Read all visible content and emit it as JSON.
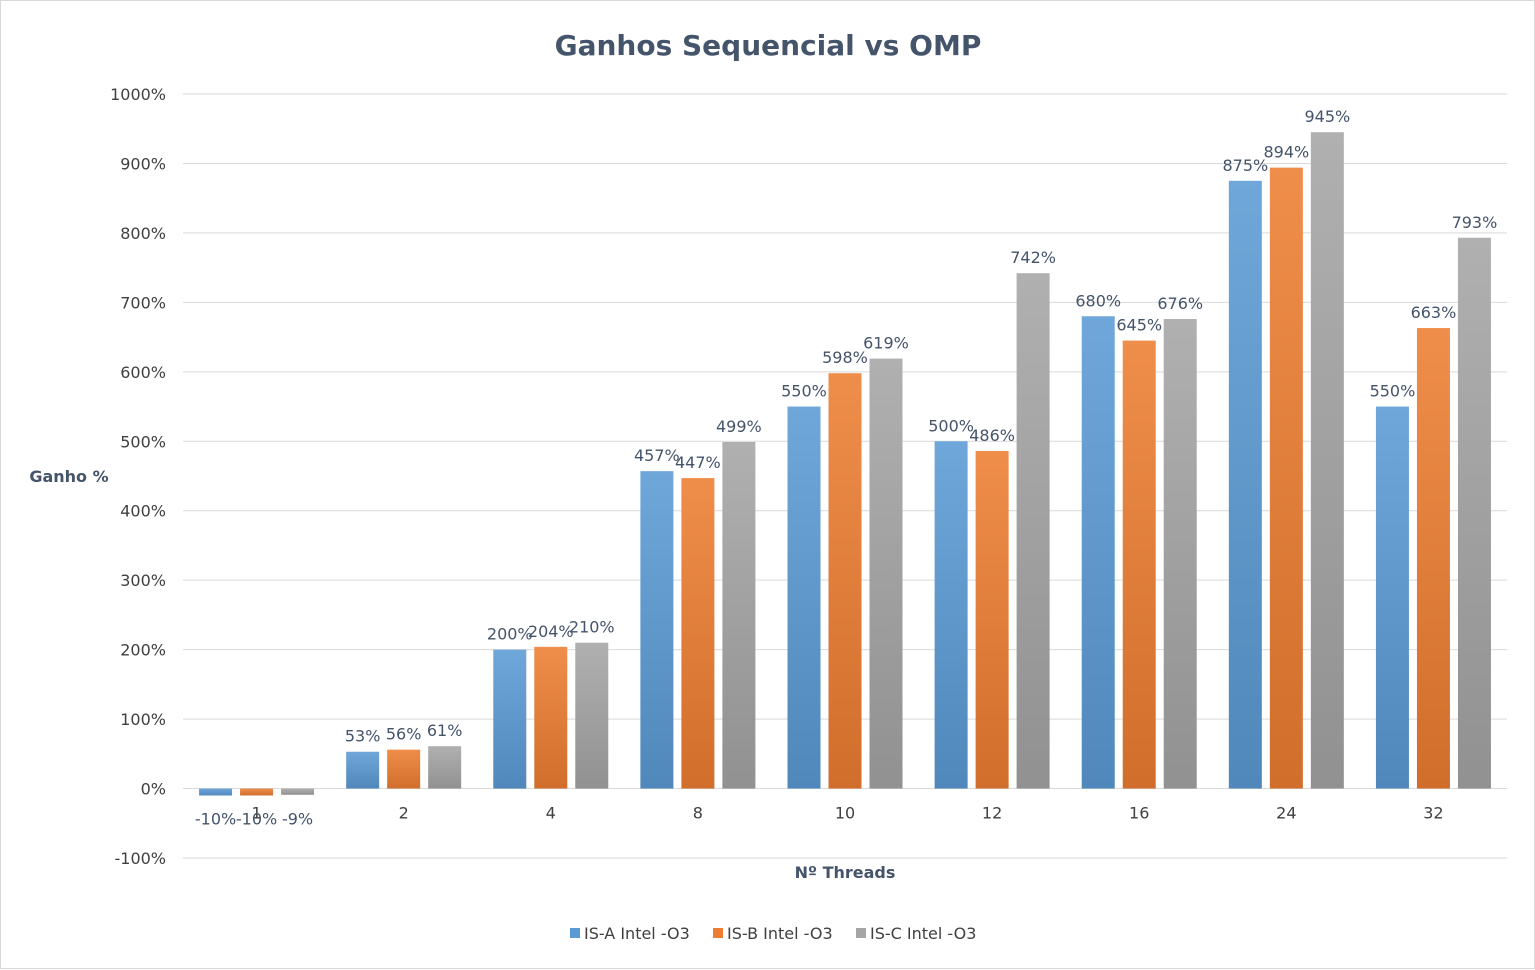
{
  "chart_data": {
    "type": "bar",
    "title": "Ganhos Sequencial vs OMP",
    "xlabel": "Nº Threads",
    "ylabel": "Ganho %",
    "categories": [
      "1",
      "2",
      "4",
      "8",
      "10",
      "12",
      "16",
      "24",
      "32"
    ],
    "ylim": [
      -100,
      1000
    ],
    "yticks": [
      -100,
      0,
      100,
      200,
      300,
      400,
      500,
      600,
      700,
      800,
      900,
      1000
    ],
    "yunit": "%",
    "grid": true,
    "legend_position": "bottom",
    "series": [
      {
        "name": "IS-A Intel -O3",
        "color": "#5b9bd5",
        "values": [
          -10,
          53,
          200,
          457,
          550,
          500,
          680,
          875,
          550
        ]
      },
      {
        "name": "IS-B Intel -O3",
        "color": "#ed7d31",
        "values": [
          -10,
          56,
          204,
          447,
          598,
          486,
          645,
          894,
          663
        ]
      },
      {
        "name": "IS-C Intel -O3",
        "color": "#a5a5a5",
        "values": [
          -9,
          61,
          210,
          499,
          619,
          742,
          676,
          945,
          793
        ]
      }
    ]
  }
}
